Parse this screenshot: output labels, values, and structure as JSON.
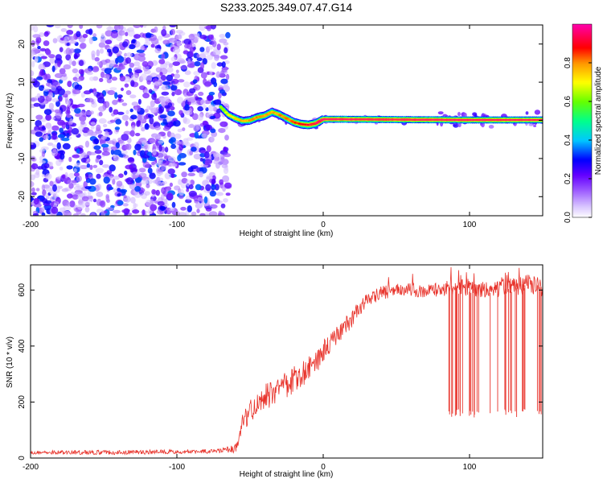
{
  "figure": {
    "title": "S233.2025.349.07.47.G14"
  },
  "chart_data": [
    {
      "type": "heatmap",
      "title": "S233.2025.349.07.47.G14",
      "xlabel": "Height of straight line (km)",
      "ylabel": "Frequency (Hz)",
      "xlim": [
        -200,
        150
      ],
      "ylim": [
        -25,
        25
      ],
      "xticks": [
        -200,
        -100,
        0,
        100
      ],
      "xtick_labels": [
        "-200",
        "-100",
        "0",
        "100"
      ],
      "yticks": [
        -20,
        -10,
        0,
        10,
        20
      ],
      "ytick_labels": [
        "-20",
        "-10",
        "0",
        "10",
        "20"
      ],
      "noise_region": {
        "x_range": [
          -200,
          -65
        ],
        "freq_range": [
          -25,
          25
        ],
        "amplitude_range": [
          0.05,
          0.35
        ]
      },
      "signal_track": {
        "x": [
          -70,
          -65,
          -60,
          -55,
          -50,
          -45,
          -40,
          -35,
          -30,
          -25,
          -20,
          -15,
          -10,
          -5,
          0,
          10,
          50,
          100,
          150
        ],
        "freq": [
          3.5,
          1.5,
          0.5,
          -0.2,
          0.0,
          0.8,
          1.2,
          2.2,
          1.5,
          0.5,
          -0.5,
          -1.0,
          -1.2,
          -0.8,
          0.3,
          0.3,
          0.2,
          0.1,
          0.1
        ],
        "amplitude": [
          0.25,
          0.35,
          0.45,
          0.5,
          0.55,
          0.6,
          0.55,
          0.5,
          0.55,
          0.6,
          0.65,
          0.75,
          0.8,
          0.85,
          0.95,
          0.97,
          0.98,
          0.95,
          0.9
        ]
      },
      "colorbar": {
        "label": "Normalized spectral amplitude",
        "range": [
          0,
          1
        ],
        "ticks": [
          0.0,
          0.2,
          0.4,
          0.6,
          0.8
        ],
        "tick_labels": [
          "0.0",
          "0.2",
          "0.4",
          "0.6",
          "0.8"
        ],
        "colors": [
          "#ffffff",
          "#c8a8ff",
          "#6a00ff",
          "#0000ff",
          "#00c8ff",
          "#00ff80",
          "#80ff00",
          "#ffff00",
          "#ff8000",
          "#ff0000",
          "#ff00a0"
        ]
      },
      "grid": false
    },
    {
      "type": "line",
      "xlabel": "Height of straight line (km)",
      "ylabel": "SNR (10 * v/v)",
      "xlim": [
        -200,
        150
      ],
      "ylim": [
        0,
        690
      ],
      "xticks": [
        -200,
        -100,
        0,
        100
      ],
      "xtick_labels": [
        "-200",
        "-100",
        "0",
        "100"
      ],
      "yticks": [
        0,
        200,
        400,
        600
      ],
      "ytick_labels": [
        "0",
        "200",
        "400",
        "600"
      ],
      "series": [
        {
          "name": "SNR",
          "color": "#e8322a",
          "x": [
            -200,
            -150,
            -100,
            -70,
            -60,
            -55,
            -50,
            -45,
            -40,
            -35,
            -30,
            -25,
            -20,
            -15,
            -10,
            -5,
            0,
            5,
            10,
            15,
            20,
            25,
            30,
            40,
            50,
            60,
            70,
            80,
            90,
            100,
            110,
            120,
            130,
            140,
            150
          ],
          "y": [
            20,
            20,
            22,
            25,
            35,
            120,
            170,
            200,
            215,
            230,
            245,
            260,
            280,
            300,
            320,
            340,
            380,
            410,
            440,
            470,
            500,
            540,
            560,
            590,
            600,
            600,
            595,
            600,
            605,
            610,
            605,
            610,
            610,
            620,
            610
          ],
          "noise": [
            8,
            10,
            10,
            10,
            20,
            50,
            55,
            60,
            60,
            60,
            60,
            60,
            60,
            60,
            60,
            55,
            55,
            50,
            40,
            40,
            40,
            35,
            35,
            30,
            30,
            30,
            30,
            30,
            35,
            40,
            40,
            45,
            45,
            45,
            45
          ]
        }
      ],
      "dropouts": {
        "x_range": [
          83,
          150
        ],
        "count": 38,
        "low_value": 160
      },
      "grid": false
    }
  ]
}
